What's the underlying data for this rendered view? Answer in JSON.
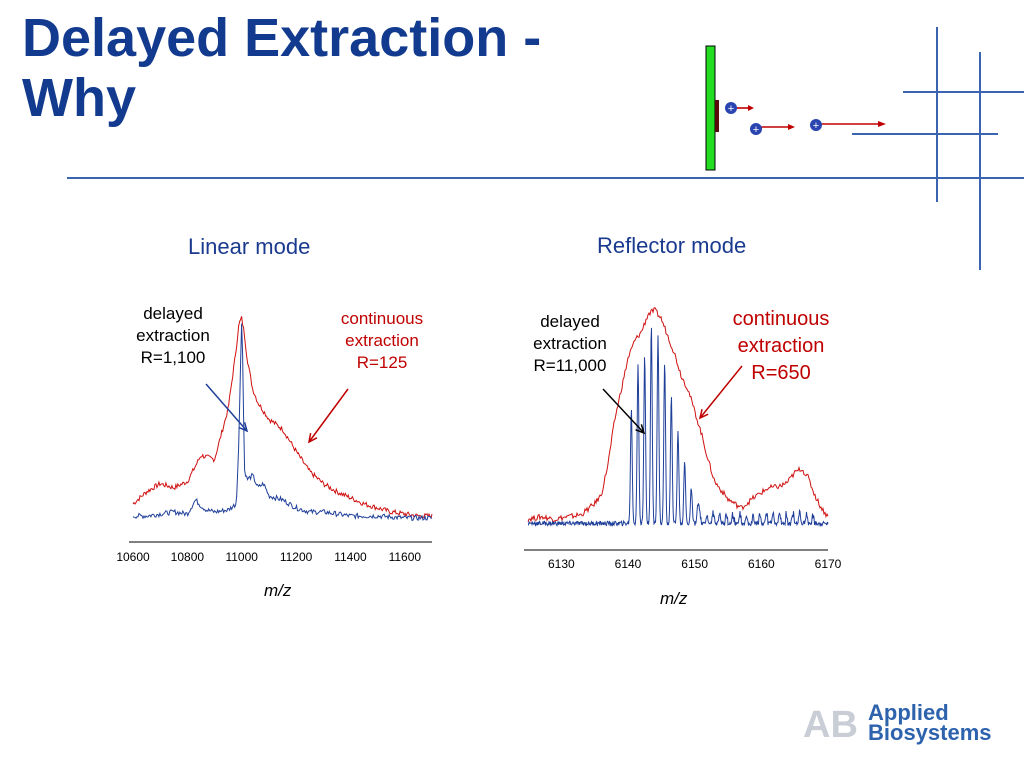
{
  "title": {
    "line1": "Delayed Extraction -",
    "line2": "Why"
  },
  "logo": {
    "mark": "AB",
    "line1": "Applied",
    "line2": "Biosystems"
  },
  "colors": {
    "title": "#123a8e",
    "red_trace": "#d01010",
    "blue_trace": "#1f3f9a",
    "rod": "#22dd22",
    "ion": "#2a44b0"
  },
  "diagram": {
    "ion_symbol": "+"
  },
  "chart_data": [
    {
      "type": "line",
      "title": "Linear mode",
      "xlabel": "m/z",
      "ylabel": "",
      "xlim": [
        10600,
        11700
      ],
      "x_ticks": [
        "10600",
        "10800",
        "11000",
        "11200",
        "11400",
        "11600"
      ],
      "annotations": [
        {
          "lines": [
            "delayed",
            "extraction",
            "R=1,100"
          ],
          "color": "blue"
        },
        {
          "lines": [
            "continuous",
            "extraction",
            "R=125"
          ],
          "color": "red"
        }
      ],
      "series": [
        {
          "color": "red",
          "x": [
            10600,
            10650,
            10700,
            10750,
            10800,
            10850,
            10900,
            10950,
            10975,
            10990,
            11000,
            11010,
            11020,
            11040,
            11060,
            11100,
            11150,
            11200,
            11250,
            11300,
            11350,
            11400,
            11450,
            11500,
            11550,
            11600,
            11650,
            11700
          ],
          "y": [
            0.08,
            0.14,
            0.18,
            0.16,
            0.19,
            0.32,
            0.3,
            0.55,
            0.8,
            0.97,
            1.0,
            0.92,
            0.8,
            0.65,
            0.58,
            0.5,
            0.45,
            0.34,
            0.24,
            0.18,
            0.14,
            0.11,
            0.08,
            0.06,
            0.04,
            0.03,
            0.02,
            0.02
          ]
        },
        {
          "color": "blue",
          "x": [
            10600,
            10650,
            10700,
            10750,
            10800,
            10830,
            10850,
            10870,
            10900,
            10950,
            10980,
            10990,
            10997,
            11000,
            11003,
            11010,
            11020,
            11040,
            11060,
            11080,
            11100,
            11150,
            11200,
            11250,
            11300,
            11400,
            11500,
            11600,
            11700
          ],
          "y": [
            0.02,
            0.02,
            0.03,
            0.04,
            0.03,
            0.1,
            0.07,
            0.05,
            0.04,
            0.05,
            0.08,
            0.4,
            0.85,
            1.0,
            0.85,
            0.25,
            0.2,
            0.22,
            0.16,
            0.18,
            0.12,
            0.1,
            0.06,
            0.04,
            0.04,
            0.02,
            0.02,
            0.01,
            0.01
          ]
        }
      ]
    },
    {
      "type": "line",
      "title": "Reflector mode",
      "xlabel": "m/z",
      "ylabel": "",
      "xlim": [
        6125,
        6170
      ],
      "x_ticks": [
        "6130",
        "6140",
        "6150",
        "6160",
        "6170"
      ],
      "annotations": [
        {
          "lines": [
            "delayed",
            "extraction",
            "R=11,000"
          ],
          "color": "black"
        },
        {
          "lines": [
            "continuous",
            "extraction",
            "R=650"
          ],
          "color": "red"
        }
      ],
      "series": [
        {
          "color": "red",
          "x": [
            6125,
            6127,
            6129,
            6131,
            6133,
            6135,
            6136,
            6137,
            6138,
            6139,
            6140,
            6141,
            6142,
            6143,
            6144,
            6145,
            6146,
            6147,
            6148,
            6149,
            6150,
            6151,
            6152,
            6153,
            6155,
            6157,
            6159,
            6160,
            6161,
            6163,
            6164,
            6165,
            6166,
            6167,
            6168,
            6169,
            6170
          ],
          "y": [
            0.05,
            0.06,
            0.05,
            0.06,
            0.07,
            0.12,
            0.16,
            0.3,
            0.5,
            0.64,
            0.78,
            0.86,
            0.9,
            0.98,
            1.0,
            0.96,
            0.88,
            0.8,
            0.7,
            0.64,
            0.54,
            0.44,
            0.32,
            0.22,
            0.14,
            0.1,
            0.15,
            0.17,
            0.19,
            0.2,
            0.22,
            0.26,
            0.28,
            0.24,
            0.16,
            0.1,
            0.06
          ]
        },
        {
          "color": "blue",
          "peaks": [
            {
              "x": 6140.5,
              "y": 0.52
            },
            {
              "x": 6141.5,
              "y": 0.72
            },
            {
              "x": 6142.5,
              "y": 0.76
            },
            {
              "x": 6143.5,
              "y": 0.9
            },
            {
              "x": 6144.5,
              "y": 0.86
            },
            {
              "x": 6145.5,
              "y": 0.74
            },
            {
              "x": 6146.5,
              "y": 0.58
            },
            {
              "x": 6147.5,
              "y": 0.42
            },
            {
              "x": 6148.5,
              "y": 0.28
            },
            {
              "x": 6149.5,
              "y": 0.16
            },
            {
              "x": 6150.5,
              "y": 0.09
            }
          ],
          "baseline": 0.03
        }
      ]
    }
  ]
}
